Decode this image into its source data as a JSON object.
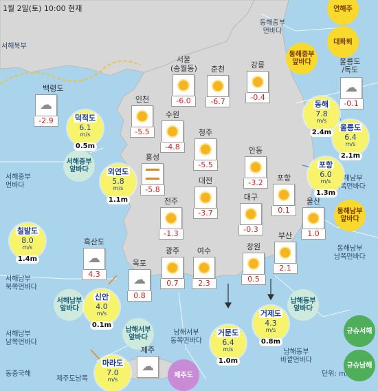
{
  "header": "1월 2일(토) 10:00 현재",
  "unit_label": "단위: m/s, m",
  "colors": {
    "sea": "#aad3ec",
    "land": "#d7d7d7",
    "buoy": "#f7f36a",
    "boundary": "#e9c24a",
    "temperature": "#d62020"
  },
  "sea_labels": [
    {
      "id": "seohae-bukbu",
      "text": "서해북부"
    },
    {
      "id": "donghae-jungbu",
      "text": "동해중부\n먼바다"
    },
    {
      "id": "seohae-jungbu",
      "text": "서해중부\n먼바다"
    },
    {
      "id": "seohae-nambu-buk",
      "text": "서해남부\n북쪽먼바다"
    },
    {
      "id": "seohae-nambu-nam",
      "text": "서해남부\n남쪽먼바다"
    },
    {
      "id": "namhae-seobu-dong",
      "text": "남해서부\n동쪽먼바다"
    },
    {
      "id": "namhae-dongbu",
      "text": "남해동부\n바깥먼바다"
    },
    {
      "id": "donghae-nambu-buk",
      "text": "동해남부\n북쪽먼바다"
    },
    {
      "id": "donghae-nambu-nam",
      "text": "동해남부\n남쪽먼바다"
    },
    {
      "id": "dongjung-guk",
      "text": "동중국해"
    },
    {
      "id": "jeju-nam",
      "text": "제주도남쪽"
    }
  ],
  "zones": [
    {
      "id": "yeonhaeju",
      "text": "연해주",
      "style": "y"
    },
    {
      "id": "daehwatoe",
      "text": "대화퇴",
      "style": "y"
    },
    {
      "id": "donghae-jungbu-anbada",
      "text": "동해중부\n앞바다",
      "style": "y"
    },
    {
      "id": "donghae-nambu-anbada",
      "text": "동해남부\n앞바다",
      "style": "y"
    },
    {
      "id": "seohae-jungbu-anbada",
      "text": "서해중부\n앞바다",
      "style": "g"
    },
    {
      "id": "seohae-nambu-anbada",
      "text": "서해남부\n앞바다",
      "style": "g"
    },
    {
      "id": "namhae-seobu-anbada",
      "text": "남해서부\n앞바다",
      "style": "g"
    },
    {
      "id": "namhae-dongbu-anbada",
      "text": "남해동부\n앞바다",
      "style": "g"
    },
    {
      "id": "gyushu-seohae",
      "text": "규슈서해",
      "style": "gr"
    },
    {
      "id": "gyushu-namhae",
      "text": "규슈남해",
      "style": "gr"
    },
    {
      "id": "jejudo-anbada",
      "text": "제주도",
      "style": "p"
    },
    {
      "id": "ulleungdo-dokdo",
      "text": "울릉도\n/독도",
      "style": "none"
    }
  ],
  "cities": [
    {
      "id": "seoul",
      "name": "서울\n(송월동)",
      "weather": "sunny",
      "temp": "-6.0"
    },
    {
      "id": "chuncheon",
      "name": "춘천",
      "weather": "sunny",
      "temp": "-6.7"
    },
    {
      "id": "gangneung",
      "name": "강릉",
      "weather": "sunny",
      "temp": "-0.4"
    },
    {
      "id": "baengnyeongdo",
      "name": "백령도",
      "weather": "cloudy",
      "temp": "-2.9"
    },
    {
      "id": "incheon",
      "name": "인천",
      "weather": "sunny",
      "temp": "-5.5"
    },
    {
      "id": "suwon",
      "name": "수원",
      "weather": "sunny",
      "temp": "-4.8"
    },
    {
      "id": "cheongju",
      "name": "청주",
      "weather": "sunny",
      "temp": "-5.5"
    },
    {
      "id": "andong",
      "name": "안동",
      "weather": "sunny",
      "temp": "-3.2"
    },
    {
      "id": "hongseong",
      "name": "홍성",
      "weather": "fog",
      "temp": "-5.8"
    },
    {
      "id": "daejeon",
      "name": "대전",
      "weather": "sunny",
      "temp": "-3.7"
    },
    {
      "id": "pohang",
      "name": "포항",
      "weather": "sunny",
      "temp": "0.1"
    },
    {
      "id": "jeonju",
      "name": "전주",
      "weather": "sunny",
      "temp": "-1.3"
    },
    {
      "id": "daegu",
      "name": "대구",
      "weather": "sunny",
      "temp": "-0.3"
    },
    {
      "id": "ulsan",
      "name": "울산",
      "weather": "sunny",
      "temp": "1.0"
    },
    {
      "id": "heuksando",
      "name": "흑산도",
      "weather": "cloudy",
      "temp": "4.3"
    },
    {
      "id": "busan",
      "name": "부산",
      "weather": "sunny",
      "temp": "2.1"
    },
    {
      "id": "mokpo",
      "name": "목포",
      "weather": "cloudy",
      "temp": "0.8"
    },
    {
      "id": "gwangju",
      "name": "광주",
      "weather": "sunny",
      "temp": "0.7"
    },
    {
      "id": "yeosu",
      "name": "여수",
      "weather": "sunny",
      "temp": "2.3"
    },
    {
      "id": "changwon",
      "name": "창원",
      "weather": "sunny",
      "temp": "0.5"
    },
    {
      "id": "jeju",
      "name": "제주",
      "weather": "cloudy",
      "temp": ""
    },
    {
      "id": "ulleungdo",
      "name": "",
      "weather": "cloudy",
      "temp": "-0.1"
    }
  ],
  "buoys": [
    {
      "id": "deokjeokdo",
      "name": "덕적도",
      "wind": "6.1",
      "unit": "m/s",
      "wave": "0.5m"
    },
    {
      "id": "oeyeondo",
      "name": "외연도",
      "wind": "5.8",
      "unit": "m/s",
      "wave": "1.1m"
    },
    {
      "id": "chilbaldo",
      "name": "칠발도",
      "wind": "8.0",
      "unit": "m/s",
      "wave": "1.4m"
    },
    {
      "id": "sinan",
      "name": "신안",
      "wind": "4.0",
      "unit": "m/s",
      "wave": "0.1m"
    },
    {
      "id": "maradô",
      "name": "마라도",
      "wind": "7.0",
      "unit": "m/s",
      "wave": ""
    },
    {
      "id": "geomundo",
      "name": "거문도",
      "wind": "6.4",
      "unit": "m/s",
      "wave": "1.0m"
    },
    {
      "id": "geojedo",
      "name": "거제도",
      "wind": "4.3",
      "unit": "m/s",
      "wave": "0.8m"
    },
    {
      "id": "pohang-buoy",
      "name": "포항",
      "wind": "6.0",
      "unit": "m/s",
      "wave": "1.3m"
    },
    {
      "id": "ulleungdo-buoy",
      "name": "울릉도",
      "wind": "6.4",
      "unit": "m/s",
      "wave": "2.1m"
    },
    {
      "id": "donghae",
      "name": "동해",
      "wind": "7.8",
      "unit": "m/s",
      "wave": "2.4m"
    }
  ]
}
